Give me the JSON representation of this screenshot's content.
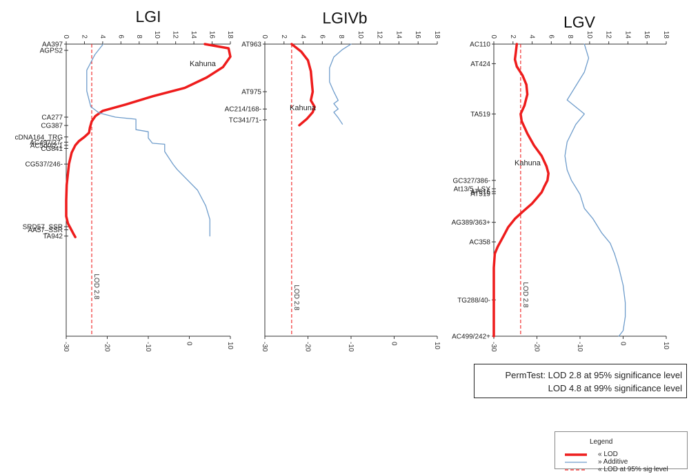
{
  "colors": {
    "lod": "#ee1c1c",
    "additive": "#6e9ccb",
    "threshold": "#ee1c1c",
    "axis": "#333333"
  },
  "chart_data": [
    {
      "type": "line",
      "title": "LGI",
      "top_axis": {
        "ticks": [
          "0",
          "2",
          "4",
          "6",
          "8",
          "10",
          "12",
          "14",
          "16",
          "18"
        ],
        "range": [
          0,
          18
        ]
      },
      "bottom_axis": {
        "ticks": [
          "-30",
          "-20",
          "-10",
          "0",
          "10"
        ],
        "range": [
          -30,
          10
        ]
      },
      "markers": [
        "AA397",
        "AGPS2",
        "CA277",
        "CG387",
        "cDNA164_TRG",
        "AC497/27-",
        "AC5d0/2.1",
        "CG841",
        "CG537/246-",
        "SRD57_SSR",
        "AA57_SSR",
        "TA942"
      ],
      "marker_positions_cM": [
        0,
        6,
        70,
        78,
        89,
        94,
        97,
        100,
        115,
        175,
        178,
        184
      ],
      "series": [
        {
          "name": "LOD",
          "scale": "top",
          "x": [
            15.2,
            17.8,
            18.0,
            17.2,
            15.4,
            13.0,
            9.5,
            6.5,
            4.0,
            3.2,
            2.8,
            2.6,
            2.5,
            2.0,
            1.4,
            1.0,
            0.6,
            0.3,
            0.05,
            0.0,
            0.0,
            0.2,
            0.5,
            0.8,
            1.0
          ],
          "y": [
            0,
            4,
            12,
            22,
            32,
            42,
            50,
            58,
            64,
            69,
            74,
            80,
            85,
            89,
            93,
            97,
            104,
            115,
            135,
            150,
            165,
            172,
            177,
            182,
            185
          ]
        },
        {
          "name": "Additive",
          "scale": "bottom",
          "x": [
            -21,
            -23,
            -25,
            -25,
            -24,
            -22,
            -18,
            -13,
            -13,
            -10,
            -10,
            -9,
            -6,
            -6,
            -6,
            -4,
            -3,
            -1,
            2,
            4,
            5,
            5
          ],
          "y": [
            0,
            10,
            25,
            45,
            60,
            66,
            70,
            72,
            82,
            84,
            90,
            95,
            96,
            100,
            103,
            115,
            120,
            128,
            140,
            155,
            168,
            184
          ]
        }
      ],
      "threshold": {
        "lod": 2.8,
        "label": "LOD 2.8"
      },
      "annotations": [
        "Kahuna"
      ]
    },
    {
      "type": "line",
      "title": "LGIVb",
      "top_axis": {
        "ticks": [
          "0",
          "2",
          "4",
          "6",
          "8",
          "10",
          "12",
          "14",
          "16",
          "18"
        ],
        "range": [
          0,
          18
        ]
      },
      "bottom_axis": {
        "ticks": [
          "-30",
          "-20",
          "-10",
          "0",
          "10"
        ],
        "range": [
          -30,
          10
        ]
      },
      "markers": [
        "AT963",
        "AT975",
        "AC214/168-",
        "TC341/71-"
      ],
      "marker_positions_cM": [
        0,
        44,
        60,
        70
      ],
      "series": [
        {
          "name": "LOD",
          "scale": "top",
          "x": [
            2.8,
            3.8,
            4.5,
            4.8,
            4.9,
            5.0,
            4.8,
            5.2,
            5.0,
            4.7,
            4.4,
            4.0,
            3.6
          ],
          "y": [
            0,
            7,
            15,
            25,
            35,
            44,
            52,
            58,
            63,
            66,
            69,
            72,
            75
          ]
        },
        {
          "name": "Additive",
          "scale": "bottom",
          "x": [
            -10,
            -12,
            -14,
            -15,
            -15,
            -14,
            -13,
            -14,
            -13,
            -14,
            -13,
            -12
          ],
          "y": [
            0,
            5,
            12,
            22,
            35,
            44,
            52,
            55,
            60,
            63,
            68,
            74
          ]
        }
      ],
      "threshold": {
        "lod": 2.8,
        "label": "LOD 2.8"
      },
      "annotations": [
        "Kahuna"
      ]
    },
    {
      "type": "line",
      "title": "LGV",
      "top_axis": {
        "ticks": [
          "0",
          "2",
          "4",
          "6",
          "8",
          "10",
          "12",
          "14",
          "16",
          "18"
        ],
        "range": [
          0,
          18
        ]
      },
      "bottom_axis": {
        "ticks": [
          "-30",
          "-20",
          "-10",
          "0",
          "10"
        ],
        "range": [
          -30,
          10
        ]
      },
      "markers": [
        "AC110",
        "AT424",
        "TA519",
        "GC327/386-",
        "At13/5_LSY",
        "AT516",
        "AT519",
        "AG389/363+",
        "AC358",
        "TG288/40-",
        "AC499/242+"
      ],
      "marker_positions_cM": [
        0,
        28,
        100,
        195,
        207,
        211,
        214,
        255,
        283,
        366,
        418
      ],
      "series": [
        {
          "name": "LOD",
          "scale": "top",
          "x": [
            2.4,
            2.3,
            2.2,
            2.4,
            3.0,
            3.4,
            3.5,
            3.2,
            2.8,
            2.9,
            3.5,
            4.2,
            5.0,
            5.5,
            5.7,
            5.6,
            5.3,
            5.0,
            4.5,
            4.0,
            3.0,
            2.2,
            1.5,
            1.0,
            0.4,
            0.1,
            0.0,
            0.0,
            0.0
          ],
          "y": [
            0,
            12,
            22,
            32,
            45,
            58,
            72,
            88,
            100,
            110,
            128,
            145,
            160,
            175,
            185,
            195,
            203,
            212,
            220,
            228,
            240,
            250,
            262,
            275,
            290,
            300,
            320,
            360,
            418
          ]
        },
        {
          "name": "Additive",
          "scale": "bottom",
          "x": [
            -9,
            -8,
            -9,
            -11,
            -13,
            -11,
            -9,
            -11,
            -13,
            -13.5,
            -13,
            -12,
            -11,
            -10,
            -9,
            -7,
            -5,
            -3,
            -2,
            -1,
            0,
            0.5,
            0.5,
            0,
            -1
          ],
          "y": [
            0,
            20,
            40,
            60,
            80,
            90,
            100,
            115,
            140,
            160,
            180,
            195,
            205,
            215,
            235,
            250,
            270,
            285,
            300,
            320,
            345,
            370,
            390,
            410,
            418
          ]
        }
      ],
      "threshold": {
        "lod": 2.8,
        "label": "LOD 2.8"
      },
      "annotations": [
        "Kahuna"
      ]
    }
  ],
  "perm_test": {
    "line1": "PermTest: LOD 2.8 at 95% significance level",
    "line2": "LOD 4.8 at 99% significance level"
  },
  "legend": {
    "title": "Legend",
    "items": [
      {
        "label": "« LOD",
        "style": "thick"
      },
      {
        "label": "» Additive",
        "style": "thin"
      },
      {
        "label": "« LOD at 95% sig level",
        "style": "dashed"
      }
    ]
  }
}
